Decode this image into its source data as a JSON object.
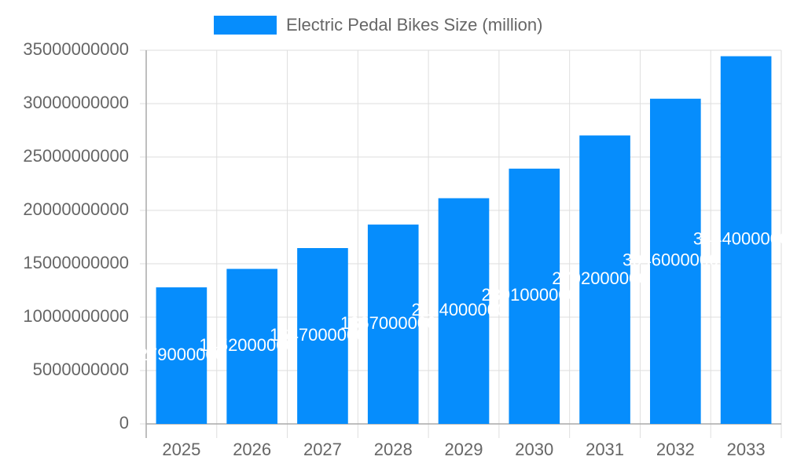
{
  "chart_data": {
    "type": "bar",
    "categories": [
      "2025",
      "2026",
      "2027",
      "2028",
      "2029",
      "2030",
      "2031",
      "2032",
      "2033"
    ],
    "series": [
      {
        "name": "Electric Pedal Bikes Size (million)",
        "color": "#068dfc",
        "values": [
          12790000000,
          14520000000,
          16470000000,
          18670000000,
          21140000000,
          23910000000,
          27020000000,
          30460000000,
          34440000000
        ]
      }
    ],
    "ylim": [
      0,
      35000000000
    ],
    "yticks": [
      0,
      5000000000,
      10000000000,
      15000000000,
      20000000000,
      25000000000,
      30000000000,
      35000000000
    ],
    "grid": true,
    "legend": "top"
  }
}
